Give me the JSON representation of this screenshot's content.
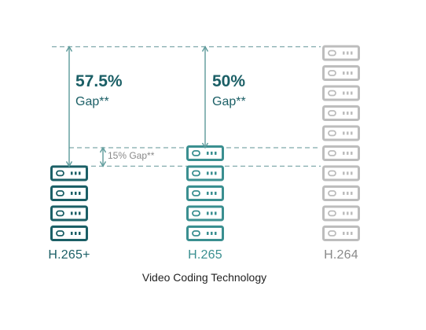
{
  "colors": {
    "dark_teal": "#1b5f66",
    "mid_teal": "#3a8f90",
    "gray": "#bdbdbd",
    "arrow": "#5c9a9a",
    "dashed": "#7fa9ab",
    "text_dark": "#222222",
    "text_gray": "#8a8a8a"
  },
  "icons": {
    "server": "server-unit-icon",
    "arrow": "double-arrow-icon"
  },
  "columns": [
    {
      "label": "H.265+",
      "servers": 4,
      "style": "dark_teal"
    },
    {
      "label": "H.265",
      "servers": 5,
      "style": "mid_teal"
    },
    {
      "label": "H.264",
      "servers": 10,
      "style": "gray"
    }
  ],
  "axis_title": "Video Coding Technology",
  "gaps": [
    {
      "value": "57.5%",
      "word": "Gap**"
    },
    {
      "value": "50%",
      "word": "Gap**"
    },
    {
      "value": "15% Gap**"
    }
  ]
}
